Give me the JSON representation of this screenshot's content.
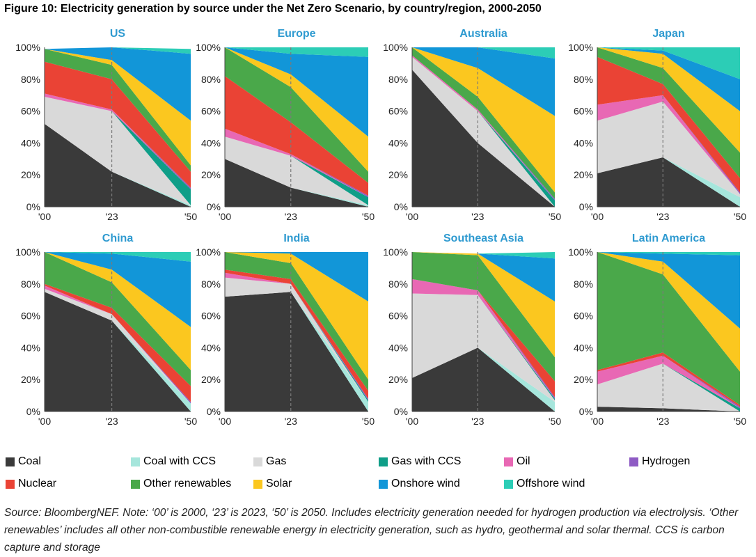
{
  "title": "Figure 10: Electricity generation by source under the Net Zero Scenario, by country/region, 2000-2050",
  "source_note": "Source: BloombergNEF. Note: ‘00’ is 2000, ‘23’ is 2023, ‘50’ is 2050. Includes electricity generation needed for hydrogen production via electrolysis. ‘Other renewables’ includes all other non-combustible renewable energy in electricity generation, such as hydro, geothermal and solar thermal. CCS is carbon capture and storage",
  "colors": {
    "Coal": "#3a3a3a",
    "Coal with CCS": "#a6e6dc",
    "Gas": "#d9d9d9",
    "Gas with CCS": "#0f9e88",
    "Oil": "#e868b4",
    "Hydrogen": "#8e5bc4",
    "Nuclear": "#ea4335",
    "Other renewables": "#4aa84a",
    "Solar": "#fbc71f",
    "Onshore wind": "#1296d8",
    "Offshore wind": "#2ccdb6"
  },
  "legend": [
    {
      "label": "Coal"
    },
    {
      "label": "Coal with CCS"
    },
    {
      "label": "Gas"
    },
    {
      "label": "Gas with CCS"
    },
    {
      "label": "Oil"
    },
    {
      "label": "Hydrogen"
    },
    {
      "label": "Nuclear"
    },
    {
      "label": "Other renewables"
    },
    {
      "label": "Solar"
    },
    {
      "label": "Onshore wind"
    },
    {
      "label": "Offshore wind"
    }
  ],
  "chart_data": [
    {
      "type": "area",
      "title": "US",
      "x": [
        2000,
        2023,
        2050
      ],
      "x_tick_labels": [
        "'00",
        "'23",
        "'50"
      ],
      "y_tick_labels": [
        "0%",
        "20%",
        "40%",
        "60%",
        "80%",
        "100%"
      ],
      "ylim": [
        0,
        100
      ],
      "marker_year": 2023,
      "series": [
        {
          "name": "Coal",
          "values": [
            52,
            22,
            0
          ]
        },
        {
          "name": "Coal with CCS",
          "values": [
            0,
            0,
            1
          ]
        },
        {
          "name": "Gas",
          "values": [
            17,
            38,
            0
          ]
        },
        {
          "name": "Gas with CCS",
          "values": [
            0,
            0,
            10
          ]
        },
        {
          "name": "Oil",
          "values": [
            2,
            1,
            0
          ]
        },
        {
          "name": "Hydrogen",
          "values": [
            0,
            0,
            1
          ]
        },
        {
          "name": "Nuclear",
          "values": [
            20,
            19,
            10
          ]
        },
        {
          "name": "Other renewables",
          "values": [
            8,
            9,
            4
          ]
        },
        {
          "name": "Solar",
          "values": [
            0,
            3,
            28
          ]
        },
        {
          "name": "Onshore wind",
          "values": [
            0,
            8,
            42
          ]
        },
        {
          "name": "Offshore wind",
          "values": [
            0,
            0,
            3
          ]
        }
      ]
    },
    {
      "type": "area",
      "title": "Europe",
      "x": [
        2000,
        2023,
        2050
      ],
      "x_tick_labels": [
        "'00",
        "'23",
        "'50"
      ],
      "y_tick_labels": [
        "0%",
        "20%",
        "40%",
        "60%",
        "80%",
        "100%"
      ],
      "ylim": [
        0,
        100
      ],
      "marker_year": 2023,
      "series": [
        {
          "name": "Coal",
          "values": [
            30,
            12,
            0
          ]
        },
        {
          "name": "Coal with CCS",
          "values": [
            0,
            0,
            1
          ]
        },
        {
          "name": "Gas",
          "values": [
            14,
            20,
            0
          ]
        },
        {
          "name": "Gas with CCS",
          "values": [
            0,
            0,
            5
          ]
        },
        {
          "name": "Oil",
          "values": [
            5,
            1,
            0
          ]
        },
        {
          "name": "Hydrogen",
          "values": [
            0,
            0,
            1
          ]
        },
        {
          "name": "Nuclear",
          "values": [
            33,
            20,
            8
          ]
        },
        {
          "name": "Other renewables",
          "values": [
            18,
            22,
            7
          ]
        },
        {
          "name": "Solar",
          "values": [
            0,
            8,
            22
          ]
        },
        {
          "name": "Onshore wind",
          "values": [
            0,
            13,
            50
          ]
        },
        {
          "name": "Offshore wind",
          "values": [
            0,
            4,
            6
          ]
        }
      ]
    },
    {
      "type": "area",
      "title": "Australia",
      "x": [
        2000,
        2023,
        2050
      ],
      "x_tick_labels": [
        "'00",
        "'23",
        "'50"
      ],
      "y_tick_labels": [
        "0%",
        "20%",
        "40%",
        "60%",
        "80%",
        "100%"
      ],
      "ylim": [
        0,
        100
      ],
      "marker_year": 2023,
      "series": [
        {
          "name": "Coal",
          "values": [
            86,
            40,
            0
          ]
        },
        {
          "name": "Coal with CCS",
          "values": [
            0,
            0,
            0
          ]
        },
        {
          "name": "Gas",
          "values": [
            8,
            20,
            0
          ]
        },
        {
          "name": "Gas with CCS",
          "values": [
            0,
            0,
            4
          ]
        },
        {
          "name": "Oil",
          "values": [
            1,
            1,
            0
          ]
        },
        {
          "name": "Hydrogen",
          "values": [
            0,
            0,
            1
          ]
        },
        {
          "name": "Nuclear",
          "values": [
            0,
            0,
            0
          ]
        },
        {
          "name": "Other renewables",
          "values": [
            5,
            8,
            4
          ]
        },
        {
          "name": "Solar",
          "values": [
            0,
            18,
            48
          ]
        },
        {
          "name": "Onshore wind",
          "values": [
            0,
            13,
            36
          ]
        },
        {
          "name": "Offshore wind",
          "values": [
            0,
            0,
            7
          ]
        }
      ]
    },
    {
      "type": "area",
      "title": "Japan",
      "x": [
        2000,
        2023,
        2050
      ],
      "x_tick_labels": [
        "'00",
        "'23",
        "'50"
      ],
      "y_tick_labels": [
        "0%",
        "20%",
        "40%",
        "60%",
        "80%",
        "100%"
      ],
      "ylim": [
        0,
        100
      ],
      "marker_year": 2023,
      "series": [
        {
          "name": "Coal",
          "values": [
            21,
            31,
            0
          ]
        },
        {
          "name": "Coal with CCS",
          "values": [
            0,
            0,
            6
          ]
        },
        {
          "name": "Gas",
          "values": [
            33,
            35,
            2
          ]
        },
        {
          "name": "Gas with CCS",
          "values": [
            0,
            0,
            0
          ]
        },
        {
          "name": "Oil",
          "values": [
            10,
            4,
            0
          ]
        },
        {
          "name": "Hydrogen",
          "values": [
            0,
            0,
            1
          ]
        },
        {
          "name": "Nuclear",
          "values": [
            30,
            7,
            9
          ]
        },
        {
          "name": "Other renewables",
          "values": [
            6,
            10,
            16
          ]
        },
        {
          "name": "Solar",
          "values": [
            0,
            9,
            26
          ]
        },
        {
          "name": "Onshore wind",
          "values": [
            0,
            2,
            20
          ]
        },
        {
          "name": "Offshore wind",
          "values": [
            0,
            2,
            20
          ]
        }
      ]
    },
    {
      "type": "area",
      "title": "China",
      "x": [
        2000,
        2023,
        2050
      ],
      "x_tick_labels": [
        "'00",
        "'23",
        "'50"
      ],
      "y_tick_labels": [
        "0%",
        "20%",
        "40%",
        "60%",
        "80%",
        "100%"
      ],
      "ylim": [
        0,
        100
      ],
      "marker_year": 2023,
      "series": [
        {
          "name": "Coal",
          "values": [
            75,
            57,
            0
          ]
        },
        {
          "name": "Coal with CCS",
          "values": [
            0,
            0,
            5
          ]
        },
        {
          "name": "Gas",
          "values": [
            2,
            4,
            0
          ]
        },
        {
          "name": "Gas with CCS",
          "values": [
            0,
            0,
            0
          ]
        },
        {
          "name": "Oil",
          "values": [
            2,
            0,
            0
          ]
        },
        {
          "name": "Hydrogen",
          "values": [
            0,
            0,
            1
          ]
        },
        {
          "name": "Nuclear",
          "values": [
            1,
            4,
            10
          ]
        },
        {
          "name": "Other renewables",
          "values": [
            20,
            16,
            10
          ]
        },
        {
          "name": "Solar",
          "values": [
            0,
            8,
            27
          ]
        },
        {
          "name": "Onshore wind",
          "values": [
            0,
            10,
            41
          ]
        },
        {
          "name": "Offshore wind",
          "values": [
            0,
            1,
            6
          ]
        }
      ]
    },
    {
      "type": "area",
      "title": "India",
      "x": [
        2000,
        2023,
        2050
      ],
      "x_tick_labels": [
        "'00",
        "'23",
        "'50"
      ],
      "y_tick_labels": [
        "0%",
        "20%",
        "40%",
        "60%",
        "80%",
        "100%"
      ],
      "ylim": [
        0,
        100
      ],
      "marker_year": 2023,
      "series": [
        {
          "name": "Coal",
          "values": [
            72,
            75,
            0
          ]
        },
        {
          "name": "Coal with CCS",
          "values": [
            0,
            0,
            6
          ]
        },
        {
          "name": "Gas",
          "values": [
            12,
            5,
            0
          ]
        },
        {
          "name": "Gas with CCS",
          "values": [
            0,
            0,
            1
          ]
        },
        {
          "name": "Oil",
          "values": [
            3,
            0,
            0
          ]
        },
        {
          "name": "Hydrogen",
          "values": [
            0,
            0,
            1
          ]
        },
        {
          "name": "Nuclear",
          "values": [
            2,
            3,
            5
          ]
        },
        {
          "name": "Other renewables",
          "values": [
            11,
            10,
            7
          ]
        },
        {
          "name": "Solar",
          "values": [
            0,
            6,
            49
          ]
        },
        {
          "name": "Onshore wind",
          "values": [
            0,
            1,
            31
          ]
        },
        {
          "name": "Offshore wind",
          "values": [
            0,
            0,
            0
          ]
        }
      ]
    },
    {
      "type": "area",
      "title": "Southeast Asia",
      "x": [
        2000,
        2023,
        2050
      ],
      "x_tick_labels": [
        "'00",
        "'23",
        "'50"
      ],
      "y_tick_labels": [
        "0%",
        "20%",
        "40%",
        "60%",
        "80%",
        "100%"
      ],
      "ylim": [
        0,
        100
      ],
      "marker_year": 2023,
      "series": [
        {
          "name": "Coal",
          "values": [
            21,
            40,
            0
          ]
        },
        {
          "name": "Coal with CCS",
          "values": [
            0,
            0,
            6
          ]
        },
        {
          "name": "Gas",
          "values": [
            53,
            33,
            1
          ]
        },
        {
          "name": "Gas with CCS",
          "values": [
            0,
            0,
            1
          ]
        },
        {
          "name": "Oil",
          "values": [
            9,
            3,
            0
          ]
        },
        {
          "name": "Hydrogen",
          "values": [
            0,
            0,
            1
          ]
        },
        {
          "name": "Nuclear",
          "values": [
            0,
            0,
            10
          ]
        },
        {
          "name": "Other renewables",
          "values": [
            17,
            22,
            15
          ]
        },
        {
          "name": "Solar",
          "values": [
            0,
            1,
            35
          ]
        },
        {
          "name": "Onshore wind",
          "values": [
            0,
            0,
            27
          ]
        },
        {
          "name": "Offshore wind",
          "values": [
            0,
            0,
            4
          ]
        }
      ]
    },
    {
      "type": "area",
      "title": "Latin America",
      "x": [
        2000,
        2023,
        2050
      ],
      "x_tick_labels": [
        "'00",
        "'23",
        "'50"
      ],
      "y_tick_labels": [
        "0%",
        "20%",
        "40%",
        "60%",
        "80%",
        "100%"
      ],
      "ylim": [
        0,
        100
      ],
      "marker_year": 2023,
      "series": [
        {
          "name": "Coal",
          "values": [
            3,
            2,
            0
          ]
        },
        {
          "name": "Coal with CCS",
          "values": [
            0,
            0,
            0
          ]
        },
        {
          "name": "Gas",
          "values": [
            14,
            28,
            0
          ]
        },
        {
          "name": "Gas with CCS",
          "values": [
            0,
            0,
            2
          ]
        },
        {
          "name": "Oil",
          "values": [
            8,
            5,
            0
          ]
        },
        {
          "name": "Hydrogen",
          "values": [
            0,
            0,
            1
          ]
        },
        {
          "name": "Nuclear",
          "values": [
            1,
            2,
            1
          ]
        },
        {
          "name": "Other renewables",
          "values": [
            74,
            49,
            21
          ]
        },
        {
          "name": "Solar",
          "values": [
            0,
            8,
            27
          ]
        },
        {
          "name": "Onshore wind",
          "values": [
            0,
            5,
            46
          ]
        },
        {
          "name": "Offshore wind",
          "values": [
            0,
            1,
            2
          ]
        }
      ]
    }
  ]
}
